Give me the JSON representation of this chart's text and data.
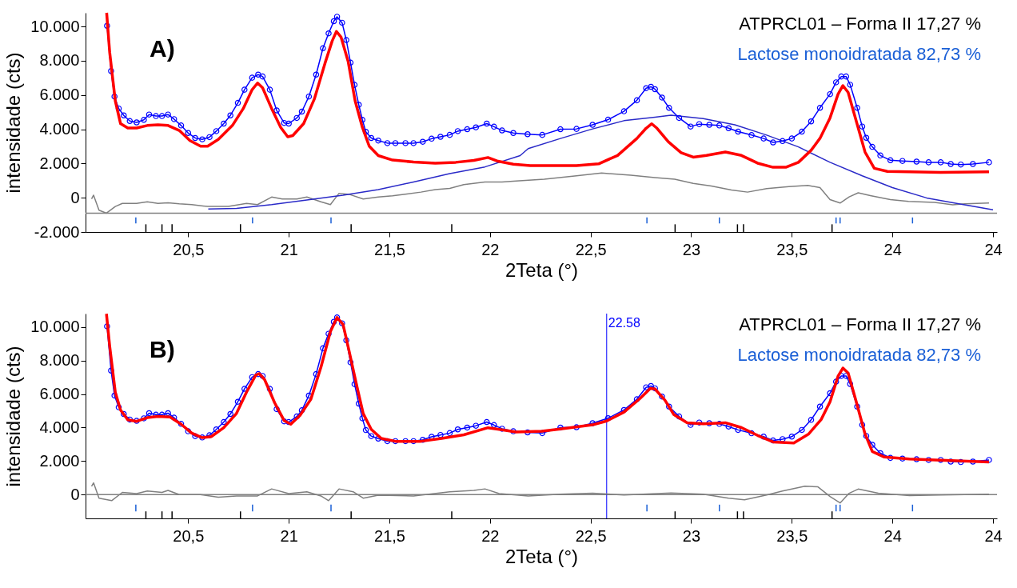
{
  "chart_data": [
    {
      "type": "line",
      "title": "A)",
      "xlabel": "2Teta (°)",
      "ylabel": "intensidade (cts)",
      "xlim": [
        20.01,
        24.5
      ],
      "xticks": [
        {
          "value": 20.5,
          "label": "20,5"
        },
        21,
        {
          "value": 21.5,
          "label": "21,5"
        },
        22,
        {
          "value": 22.5,
          "label": "22,5"
        },
        23,
        {
          "value": 23.5,
          "label": "23,5"
        },
        24,
        {
          "value": 24.5,
          "label": "24"
        }
      ],
      "ylim": [
        -2000,
        10800
      ],
      "yticks": [
        {
          "value": -2000,
          "label": "-2.000"
        },
        0,
        {
          "value": 2000,
          "label": "2.000"
        },
        {
          "value": 4000,
          "label": "4.000"
        },
        {
          "value": 6000,
          "label": "6.000"
        },
        {
          "value": 8000,
          "label": "8.000"
        },
        {
          "value": 10000,
          "label": "10.000"
        }
      ],
      "grid": false,
      "legend": "top right",
      "ref_lines": [
        {
          "axis": "y",
          "value": -900,
          "color": "#808080"
        }
      ],
      "series": [
        {
          "type": "bar",
          "name": "ATPRCL01 – Forma II 17,27 %",
          "color": "#000000",
          "x": [
            20.29,
            20.37,
            20.42,
            20.76,
            21.31,
            21.81,
            22.92,
            23.23,
            23.26,
            23.7
          ],
          "base": [
            -2000,
            -2000,
            -2000,
            -2000,
            -2000,
            -2000,
            -2000,
            -2000,
            -2000,
            -2000
          ],
          "values": [
            450,
            450,
            450,
            450,
            450,
            450,
            450,
            450,
            450,
            450
          ]
        },
        {
          "type": "bar",
          "name": "Lactose monoidratada 82,73 %",
          "color": "#1a5fd6",
          "x": [
            20.24,
            20.82,
            21.21,
            22.78,
            23.14,
            23.72,
            23.74,
            24.1
          ],
          "base": [
            -1500,
            -1500,
            -1500,
            -1500,
            -1500,
            -1500,
            -1500,
            -1500
          ],
          "values": [
            350,
            350,
            350,
            350,
            350,
            350,
            350,
            350
          ]
        },
        {
          "color": "#808080",
          "x": [
            20.02,
            20.03,
            20.057,
            20.094,
            20.138,
            20.173,
            20.244,
            20.297,
            20.35,
            20.4,
            20.456,
            20.518,
            20.597,
            20.7,
            20.79,
            20.845,
            20.915,
            20.968,
            21.04,
            21.09,
            21.16,
            21.207,
            21.25,
            21.3,
            21.37,
            21.445,
            21.516,
            21.587,
            21.657,
            21.728,
            21.8,
            21.87,
            21.975,
            22.06,
            22.13,
            22.27,
            22.43,
            22.555,
            22.7,
            22.82,
            22.918,
            23.01,
            23.1,
            23.2,
            23.28,
            23.375,
            23.486,
            23.58,
            23.64,
            23.69,
            23.74,
            23.785,
            23.83,
            23.89,
            23.99,
            24.08,
            24.21,
            24.3,
            24.36,
            24.48
          ],
          "values": [
            -70,
            150,
            -730,
            -900,
            -510,
            -330,
            -330,
            -240,
            -330,
            -290,
            -350,
            -400,
            -510,
            -510,
            -330,
            -400,
            40,
            -70,
            -70,
            40,
            -240,
            -400,
            260,
            200,
            -70,
            40,
            110,
            220,
            330,
            480,
            550,
            770,
            920,
            920,
            980,
            1080,
            1280,
            1440,
            1320,
            1180,
            1080,
            840,
            690,
            450,
            330,
            530,
            650,
            720,
            590,
            -110,
            -310,
            50,
            290,
            130,
            -110,
            -210,
            -270,
            -410,
            -350,
            -310
          ]
        },
        {
          "color": "#2a2ac8",
          "x": [
            20.6,
            20.74,
            20.915,
            21.09,
            21.27,
            21.445,
            21.62,
            21.8,
            21.975,
            22.15,
            22.19,
            22.35,
            22.51,
            22.666,
            22.82,
            22.9,
            23.06,
            23.217,
            23.375,
            23.533,
            23.69,
            23.85,
            24.0,
            24.17,
            24.33,
            24.5
          ],
          "values": [
            -660,
            -620,
            -400,
            -130,
            150,
            480,
            920,
            1410,
            1800,
            2460,
            2870,
            3460,
            4020,
            4500,
            4700,
            4820,
            4620,
            4260,
            3660,
            2970,
            2070,
            1280,
            590,
            -10,
            -350,
            -700
          ]
        },
        {
          "marker": "circle",
          "color": "#0000ff",
          "x": [
            20.097,
            20.117,
            20.134,
            20.155,
            20.18,
            20.21,
            20.244,
            20.28,
            20.306,
            20.34,
            20.37,
            20.4,
            20.43,
            20.465,
            20.5,
            20.535,
            20.57,
            20.606,
            20.64,
            20.677,
            20.71,
            20.747,
            20.78,
            20.818,
            20.848,
            20.87,
            20.906,
            20.94,
            20.977,
            21.0,
            21.04,
            21.065,
            21.1,
            21.136,
            21.17,
            21.198,
            21.224,
            21.24,
            21.265,
            21.286,
            21.307,
            21.327,
            21.348,
            21.366,
            21.383,
            21.41,
            21.445,
            21.49,
            21.53,
            21.58,
            21.62,
            21.666,
            21.71,
            21.754,
            21.8,
            21.84,
            21.887,
            21.93,
            21.984,
            22.02,
            22.06,
            22.116,
            22.187,
            22.26,
            22.35,
            22.43,
            22.51,
            22.587,
            22.666,
            22.73,
            22.776,
            22.8,
            22.82,
            22.855,
            22.89,
            22.94,
            22.997,
            23.04,
            23.09,
            23.14,
            23.186,
            23.233,
            23.3,
            23.36,
            23.407,
            23.454,
            23.5,
            23.55,
            23.596,
            23.64,
            23.69,
            23.72,
            23.746,
            23.77,
            23.79,
            23.825,
            23.85,
            23.87,
            23.9,
            23.94,
            23.99,
            24.05,
            24.12,
            24.18,
            24.24,
            24.29,
            24.34,
            24.4,
            24.48
          ],
          "values": [
            10040,
            7400,
            5910,
            5210,
            4810,
            4480,
            4400,
            4550,
            4860,
            4770,
            4770,
            4860,
            4590,
            4220,
            3780,
            3490,
            3410,
            3540,
            3890,
            4330,
            4810,
            5540,
            6310,
            7010,
            7190,
            7080,
            6310,
            5100,
            4370,
            4330,
            4660,
            5030,
            5910,
            7190,
            8730,
            9600,
            10310,
            10570,
            10220,
            9210,
            7890,
            6590,
            5430,
            4550,
            3850,
            3490,
            3340,
            3190,
            3190,
            3190,
            3190,
            3270,
            3450,
            3560,
            3670,
            3890,
            4000,
            4110,
            4330,
            4150,
            3930,
            3780,
            3710,
            3670,
            4000,
            4020,
            4260,
            4560,
            5050,
            5690,
            6400,
            6480,
            6340,
            5850,
            5250,
            4660,
            4160,
            4300,
            4260,
            4220,
            4060,
            3860,
            3660,
            3460,
            3230,
            3310,
            3460,
            3860,
            4460,
            5250,
            6050,
            6740,
            7080,
            7080,
            6600,
            5250,
            4160,
            3500,
            2970,
            2470,
            2190,
            2150,
            2110,
            2070,
            2070,
            1970,
            1940,
            1970,
            2070
          ]
        },
        {
          "color": "#ff0000",
          "x": [
            20.095,
            20.11,
            20.138,
            20.164,
            20.2,
            20.244,
            20.297,
            20.35,
            20.4,
            20.456,
            20.509,
            20.562,
            20.597,
            20.65,
            20.72,
            20.774,
            20.818,
            20.845,
            20.87,
            20.915,
            20.96,
            20.995,
            21.02,
            21.074,
            21.127,
            21.18,
            21.216,
            21.237,
            21.26,
            21.295,
            21.33,
            21.366,
            21.4,
            21.445,
            21.516,
            21.62,
            21.728,
            21.83,
            21.92,
            21.99,
            22.04,
            22.116,
            22.2,
            22.27,
            22.43,
            22.54,
            22.634,
            22.73,
            22.776,
            22.804,
            22.83,
            22.886,
            22.95,
            23.01,
            23.076,
            23.17,
            23.25,
            23.33,
            23.407,
            23.47,
            23.533,
            23.596,
            23.64,
            23.69,
            23.73,
            23.754,
            23.78,
            23.816,
            23.864,
            23.91,
            23.975,
            24.085,
            24.24,
            24.48
          ],
          "values": [
            10800,
            8500,
            5650,
            4330,
            4070,
            4070,
            4220,
            4260,
            4220,
            3930,
            3340,
            3010,
            3010,
            3410,
            4220,
            5210,
            6310,
            6700,
            6420,
            5210,
            4110,
            3560,
            3630,
            4330,
            5760,
            7850,
            9160,
            9710,
            9380,
            7960,
            5650,
            4110,
            3010,
            2460,
            2200,
            2090,
            2020,
            2070,
            2180,
            2350,
            2130,
            1960,
            1880,
            1880,
            1880,
            1980,
            2470,
            3460,
            4060,
            4320,
            4060,
            3270,
            2630,
            2370,
            2470,
            2670,
            2470,
            2020,
            1780,
            1780,
            2070,
            2770,
            3470,
            4660,
            6050,
            6550,
            6150,
            4660,
            2670,
            1720,
            1540,
            1520,
            1480,
            1520
          ]
        }
      ]
    },
    {
      "type": "line",
      "title": "B)",
      "xlabel": "2Teta (°)",
      "ylabel": "intensidade (cts)",
      "xlim": [
        20.01,
        24.5
      ],
      "xticks": [
        {
          "value": 20.5,
          "label": "20,5"
        },
        21,
        {
          "value": 21.5,
          "label": "21,5"
        },
        22,
        {
          "value": 22.5,
          "label": "22,5"
        },
        23,
        {
          "value": 23.5,
          "label": "23,5"
        },
        24,
        {
          "value": 24.5,
          "label": "24"
        }
      ],
      "ylim": [
        -1420,
        10800
      ],
      "yticks": [
        0,
        {
          "value": 2000,
          "label": "2.000"
        },
        {
          "value": 4000,
          "label": "4.000"
        },
        {
          "value": 6000,
          "label": "6.000"
        },
        {
          "value": 8000,
          "label": "8.000"
        },
        {
          "value": 10000,
          "label": "10.000"
        }
      ],
      "grid": false,
      "legend": "top right",
      "ref_lines": [
        {
          "axis": "y",
          "value": 0,
          "color": "#808080"
        },
        {
          "axis": "x",
          "value": 22.58,
          "label": "22.58",
          "color": "#0000ff"
        }
      ],
      "series": [
        {
          "type": "bar",
          "name": "ATPRCL01 – Forma II 17,27 %",
          "color": "#000000",
          "x": [
            20.29,
            20.37,
            20.42,
            20.76,
            21.31,
            21.81,
            22.92,
            23.23,
            23.26,
            23.7
          ],
          "base": [
            -1420,
            -1420,
            -1420,
            -1420,
            -1420,
            -1420,
            -1420,
            -1420,
            -1420,
            -1420
          ],
          "values": [
            420,
            420,
            420,
            420,
            420,
            420,
            420,
            420,
            420,
            420
          ]
        },
        {
          "type": "bar",
          "name": "Lactose monoidratada 82,73 %",
          "color": "#1a5fd6",
          "x": [
            20.24,
            20.82,
            21.21,
            22.78,
            23.14,
            23.72,
            23.74,
            24.1
          ],
          "base": [
            -1000,
            -1000,
            -1000,
            -1000,
            -1000,
            -1000,
            -1000,
            -1000
          ],
          "values": [
            400,
            400,
            400,
            400,
            400,
            400,
            400,
            400
          ]
        },
        {
          "color": "#808080",
          "x": [
            20.02,
            20.03,
            20.057,
            20.12,
            20.173,
            20.244,
            20.297,
            20.37,
            20.4,
            20.456,
            20.56,
            20.65,
            20.74,
            20.845,
            20.915,
            21.0,
            21.09,
            21.16,
            21.198,
            21.25,
            21.32,
            21.37,
            21.445,
            21.62,
            21.8,
            21.92,
            21.975,
            22.046,
            22.19,
            22.35,
            22.51,
            22.666,
            22.9,
            23.06,
            23.186,
            23.265,
            23.375,
            23.454,
            23.565,
            23.63,
            23.69,
            23.74,
            23.785,
            23.83,
            23.93,
            24.085,
            24.24,
            24.48
          ],
          "values": [
            490,
            700,
            -210,
            -360,
            130,
            60,
            210,
            130,
            250,
            0,
            0,
            -150,
            -80,
            -80,
            340,
            60,
            170,
            -80,
            -360,
            340,
            170,
            -210,
            -40,
            -80,
            170,
            250,
            340,
            60,
            -80,
            20,
            80,
            -20,
            100,
            20,
            -210,
            -310,
            -20,
            210,
            500,
            460,
            -110,
            -500,
            80,
            330,
            80,
            -60,
            -20,
            20
          ]
        },
        {
          "marker": "circle",
          "color": "#0000ff",
          "x": [
            20.097,
            20.117,
            20.134,
            20.155,
            20.18,
            20.21,
            20.244,
            20.28,
            20.306,
            20.34,
            20.37,
            20.4,
            20.43,
            20.465,
            20.5,
            20.535,
            20.57,
            20.606,
            20.64,
            20.677,
            20.71,
            20.747,
            20.78,
            20.818,
            20.848,
            20.87,
            20.906,
            20.94,
            20.977,
            21.0,
            21.04,
            21.065,
            21.1,
            21.136,
            21.17,
            21.198,
            21.224,
            21.24,
            21.265,
            21.286,
            21.307,
            21.327,
            21.348,
            21.366,
            21.383,
            21.41,
            21.445,
            21.49,
            21.53,
            21.58,
            21.62,
            21.666,
            21.71,
            21.754,
            21.8,
            21.84,
            21.887,
            21.93,
            21.984,
            22.02,
            22.06,
            22.116,
            22.187,
            22.26,
            22.35,
            22.43,
            22.51,
            22.587,
            22.666,
            22.73,
            22.776,
            22.8,
            22.82,
            22.855,
            22.89,
            22.94,
            22.997,
            23.04,
            23.09,
            23.14,
            23.186,
            23.233,
            23.3,
            23.36,
            23.407,
            23.454,
            23.5,
            23.55,
            23.596,
            23.64,
            23.69,
            23.72,
            23.746,
            23.77,
            23.79,
            23.825,
            23.85,
            23.87,
            23.9,
            23.94,
            23.99,
            24.05,
            24.12,
            24.18,
            24.24,
            24.29,
            24.34,
            24.4,
            24.48
          ],
          "values": [
            10040,
            7400,
            5910,
            5210,
            4810,
            4480,
            4400,
            4550,
            4860,
            4770,
            4770,
            4860,
            4590,
            4220,
            3780,
            3490,
            3410,
            3540,
            3890,
            4330,
            4810,
            5540,
            6310,
            7010,
            7190,
            7080,
            6310,
            5100,
            4370,
            4330,
            4660,
            5030,
            5910,
            7190,
            8730,
            9600,
            10310,
            10570,
            10220,
            9210,
            7890,
            6590,
            5430,
            4550,
            3850,
            3490,
            3340,
            3190,
            3190,
            3190,
            3190,
            3270,
            3450,
            3560,
            3670,
            3890,
            4000,
            4110,
            4330,
            4150,
            3930,
            3780,
            3710,
            3670,
            4000,
            4020,
            4260,
            4560,
            5050,
            5690,
            6400,
            6480,
            6340,
            5850,
            5250,
            4660,
            4160,
            4300,
            4260,
            4220,
            4060,
            3860,
            3660,
            3460,
            3230,
            3310,
            3460,
            3860,
            4460,
            5250,
            6050,
            6740,
            7080,
            7080,
            6600,
            5250,
            4160,
            3500,
            2970,
            2470,
            2190,
            2150,
            2110,
            2070,
            2070,
            1970,
            1940,
            1970,
            2070
          ]
        },
        {
          "color": "#ff0000",
          "x": [
            20.094,
            20.11,
            20.138,
            20.164,
            20.2,
            20.244,
            20.297,
            20.35,
            20.41,
            20.465,
            20.518,
            20.57,
            20.615,
            20.677,
            20.74,
            20.79,
            20.836,
            20.853,
            20.88,
            20.93,
            20.977,
            21.01,
            21.056,
            21.11,
            21.16,
            21.207,
            21.24,
            21.27,
            21.3,
            21.337,
            21.37,
            21.41,
            21.46,
            21.53,
            21.657,
            21.76,
            21.87,
            21.99,
            22.046,
            22.13,
            22.258,
            22.35,
            22.51,
            22.58,
            22.666,
            22.745,
            22.797,
            22.82,
            22.87,
            22.914,
            22.98,
            23.06,
            23.17,
            23.25,
            23.33,
            23.407,
            23.51,
            23.584,
            23.646,
            23.69,
            23.73,
            23.754,
            23.78,
            23.816,
            23.864,
            23.9,
            23.96,
            24.085,
            24.24,
            24.48
          ],
          "values": [
            10790,
            8870,
            6110,
            5050,
            4460,
            4370,
            4590,
            4670,
            4630,
            4200,
            3670,
            3400,
            3460,
            3990,
            4840,
            6110,
            7130,
            7220,
            6860,
            5480,
            4420,
            4200,
            4730,
            5690,
            7600,
            9720,
            10570,
            10150,
            8560,
            6540,
            4840,
            3890,
            3350,
            3180,
            3180,
            3350,
            3570,
            3990,
            3890,
            3740,
            3780,
            3910,
            4160,
            4390,
            4920,
            5730,
            6340,
            6300,
            5630,
            4770,
            4290,
            4230,
            4290,
            4000,
            3530,
            3140,
            3080,
            3620,
            4480,
            5540,
            7070,
            7550,
            7260,
            5730,
            3620,
            2570,
            2240,
            2130,
            2050,
            1940
          ]
        }
      ]
    }
  ]
}
